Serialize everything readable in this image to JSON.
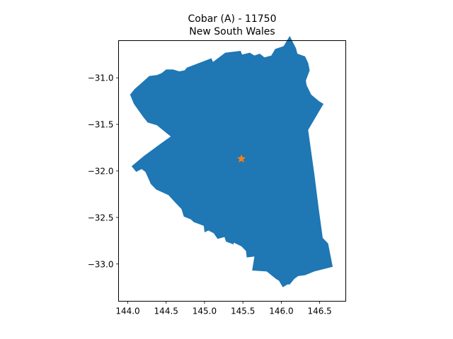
{
  "title": {
    "line1": "Cobar (A) - 11750",
    "line2": "New South Wales"
  },
  "map": {
    "region_color": "#1f77b4",
    "marker_color": "#ff7f0e",
    "marker_icon": "star-marker",
    "marker_position": {
      "lon": 145.48,
      "lat": -31.87
    },
    "x_range": [
      143.88,
      146.84
    ],
    "y_range": [
      -33.4,
      -30.6
    ],
    "x_ticks": [
      {
        "value": 144.0,
        "label": "144.0"
      },
      {
        "value": 144.5,
        "label": "144.5"
      },
      {
        "value": 145.0,
        "label": "145.0"
      },
      {
        "value": 145.5,
        "label": "145.5"
      },
      {
        "value": 146.0,
        "label": "146.0"
      },
      {
        "value": 146.5,
        "label": "146.5"
      }
    ],
    "y_ticks": [
      {
        "value": -31.0,
        "label": "−31.0"
      },
      {
        "value": -31.5,
        "label": "−31.5"
      },
      {
        "value": -32.0,
        "label": "−32.0"
      },
      {
        "value": -32.5,
        "label": "−32.5"
      },
      {
        "value": -33.0,
        "label": "−33.0"
      }
    ],
    "boundary": [
      [
        144.67,
        -30.93
      ],
      [
        144.74,
        -30.92
      ],
      [
        144.77,
        -30.89
      ],
      [
        145.09,
        -30.79
      ],
      [
        145.11,
        -30.83
      ],
      [
        145.27,
        -30.73
      ],
      [
        145.47,
        -30.71
      ],
      [
        145.49,
        -30.75
      ],
      [
        145.59,
        -30.73
      ],
      [
        145.65,
        -30.76
      ],
      [
        145.72,
        -30.74
      ],
      [
        145.78,
        -30.78
      ],
      [
        145.87,
        -30.76
      ],
      [
        145.92,
        -30.69
      ],
      [
        146.03,
        -30.66
      ],
      [
        146.11,
        -30.55
      ],
      [
        146.19,
        -30.68
      ],
      [
        146.21,
        -30.74
      ],
      [
        146.31,
        -30.77
      ],
      [
        146.35,
        -30.84
      ],
      [
        146.37,
        -30.92
      ],
      [
        146.32,
        -31.03
      ],
      [
        146.33,
        -31.08
      ],
      [
        146.39,
        -31.18
      ],
      [
        146.49,
        -31.25
      ],
      [
        146.55,
        -31.28
      ],
      [
        146.35,
        -31.56
      ],
      [
        146.43,
        -32.03
      ],
      [
        146.49,
        -32.42
      ],
      [
        146.54,
        -32.72
      ],
      [
        146.61,
        -32.78
      ],
      [
        146.67,
        -33.03
      ],
      [
        146.43,
        -33.08
      ],
      [
        146.31,
        -33.12
      ],
      [
        146.22,
        -33.13
      ],
      [
        146.17,
        -33.16
      ],
      [
        146.11,
        -33.22
      ],
      [
        146.08,
        -33.22
      ],
      [
        146.02,
        -33.25
      ],
      [
        145.97,
        -33.18
      ],
      [
        145.93,
        -33.16
      ],
      [
        145.81,
        -33.08
      ],
      [
        145.62,
        -33.07
      ],
      [
        145.65,
        -32.92
      ],
      [
        145.55,
        -32.93
      ],
      [
        145.54,
        -32.86
      ],
      [
        145.48,
        -32.81
      ],
      [
        145.38,
        -32.77
      ],
      [
        145.38,
        -32.79
      ],
      [
        145.28,
        -32.76
      ],
      [
        145.26,
        -32.71
      ],
      [
        145.17,
        -32.73
      ],
      [
        145.12,
        -32.67
      ],
      [
        145.05,
        -32.64
      ],
      [
        145.0,
        -32.66
      ],
      [
        144.99,
        -32.59
      ],
      [
        144.86,
        -32.55
      ],
      [
        144.82,
        -32.52
      ],
      [
        144.73,
        -32.49
      ],
      [
        144.7,
        -32.41
      ],
      [
        144.63,
        -32.35
      ],
      [
        144.53,
        -32.26
      ],
      [
        144.37,
        -32.2
      ],
      [
        144.3,
        -32.14
      ],
      [
        144.23,
        -32.01
      ],
      [
        144.18,
        -31.98
      ],
      [
        144.11,
        -32.01
      ],
      [
        144.05,
        -31.95
      ],
      [
        144.21,
        -31.84
      ],
      [
        144.44,
        -31.7
      ],
      [
        144.56,
        -31.63
      ],
      [
        144.47,
        -31.57
      ],
      [
        144.38,
        -31.51
      ],
      [
        144.26,
        -31.48
      ],
      [
        144.2,
        -31.42
      ],
      [
        144.08,
        -31.28
      ],
      [
        144.03,
        -31.18
      ],
      [
        144.09,
        -31.12
      ],
      [
        144.2,
        -31.04
      ],
      [
        144.28,
        -30.98
      ],
      [
        144.38,
        -30.97
      ],
      [
        144.44,
        -30.95
      ],
      [
        144.5,
        -30.91
      ],
      [
        144.59,
        -30.91
      ]
    ]
  }
}
